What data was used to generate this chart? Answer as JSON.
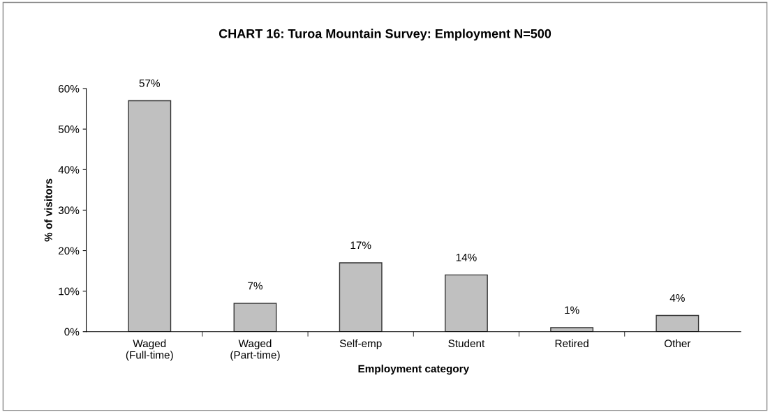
{
  "chart_data": {
    "type": "bar",
    "title": "CHART 16: Turoa Mountain Survey: Employment N=500",
    "xlabel": "Employment category",
    "ylabel": "% of visitors",
    "categories": [
      "Waged\n(Full-time)",
      "Waged\n(Part-time)",
      "Self-emp",
      "Student",
      "Retired",
      "Other"
    ],
    "values": [
      57,
      7,
      17,
      14,
      1,
      4
    ],
    "value_labels": [
      "57%",
      "7%",
      "17%",
      "14%",
      "1%",
      "4%"
    ],
    "color": "#c0c0c0",
    "ylim": [
      0,
      60
    ],
    "yticks": [
      {
        "value": 0,
        "label": "0%"
      },
      {
        "value": 10,
        "label": "10%"
      },
      {
        "value": 20,
        "label": "20%"
      },
      {
        "value": 30,
        "label": "30%"
      },
      {
        "value": 40,
        "label": "40%"
      },
      {
        "value": 50,
        "label": "50%"
      },
      {
        "value": 60,
        "label": "60%"
      }
    ],
    "grid": false,
    "legend": false
  }
}
